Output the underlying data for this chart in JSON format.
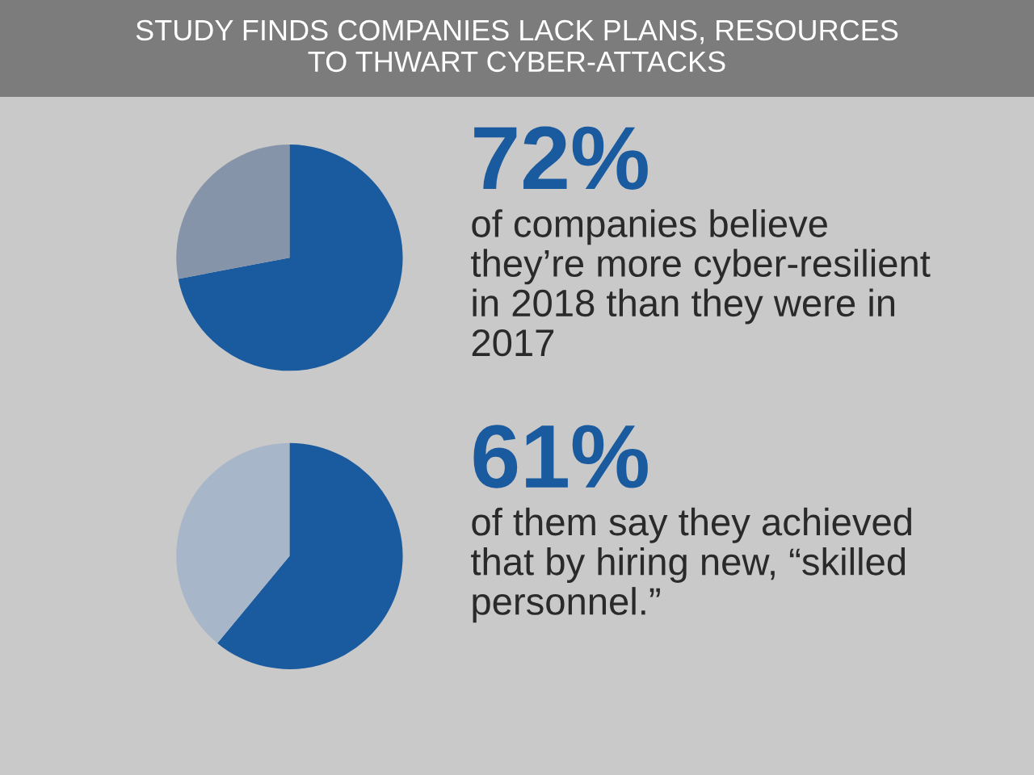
{
  "chart_data": [
    {
      "type": "pie",
      "title": "STUDY FINDS COMPANIES LACK PLANS, RESOURCES\nTO THWART CYBER-ATTACKS",
      "categories": [
        null,
        null
      ],
      "values": [
        72,
        28
      ],
      "colors": [
        "#1a5a9e",
        "#8694aa"
      ],
      "value_labels": [
        "72%",
        null
      ],
      "annotations": [
        "of companies believe\nthey’re more cyber-resilient\nin 2018 than they were in\n2017"
      ]
    },
    {
      "type": "pie",
      "categories": [
        null,
        null
      ],
      "values": [
        61,
        39
      ],
      "colors": [
        "#1a5a9e",
        "#a7b6c9"
      ],
      "value_labels": [
        "61%",
        null
      ],
      "annotations": [
        "of them say they achieved\nthat by hiring new, “skilled\npersonnel.”"
      ]
    }
  ]
}
